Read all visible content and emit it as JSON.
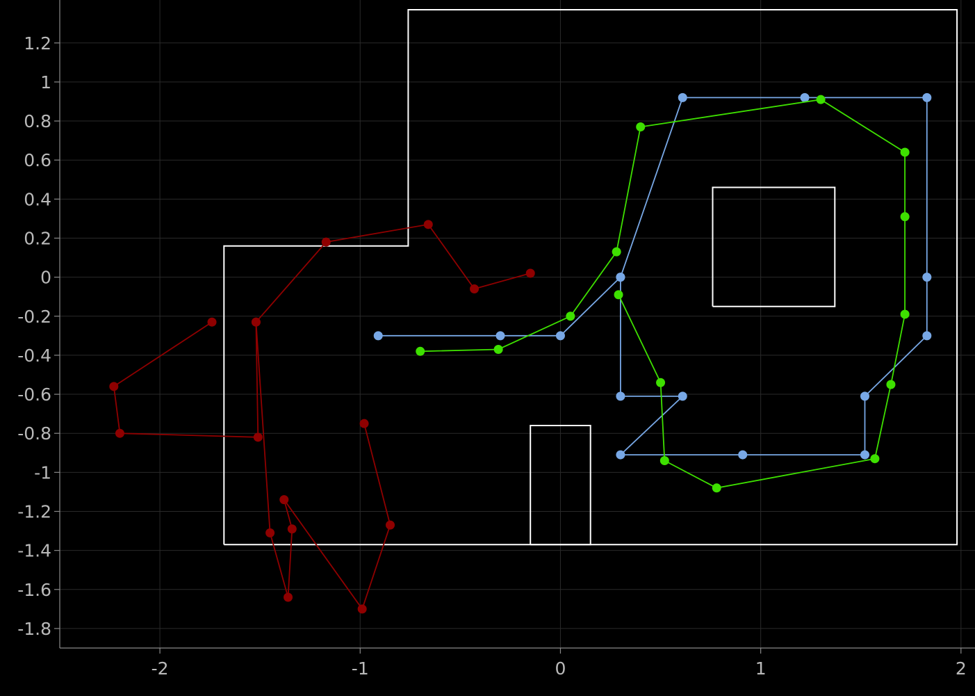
{
  "chart_data": {
    "type": "line",
    "title": "",
    "xlabel": "",
    "ylabel": "",
    "xlim": [
      -2.5,
      2.07
    ],
    "ylim": [
      -1.9,
      1.42
    ],
    "grid": true,
    "x_ticks": [
      -2,
      -1,
      0,
      1,
      2
    ],
    "x_tick_labels": [
      "-2",
      "-1",
      "0",
      "1",
      "2"
    ],
    "y_ticks": [
      1.2,
      1,
      0.8,
      0.6,
      0.4,
      0.2,
      0,
      -0.2,
      -0.4,
      -0.6,
      -0.8,
      -1,
      -1.2,
      -1.4,
      -1.6,
      -1.8
    ],
    "y_tick_labels": [
      "1.2",
      "1",
      "0.8",
      "0.6",
      "0.4",
      "0.2",
      "0",
      "-0.2",
      "-0.4",
      "-0.6",
      "-0.8",
      "-1",
      "-1.2",
      "-1.4",
      "-1.6",
      "-1.8"
    ],
    "map_outline": {
      "color": "#ffffff",
      "outer_wall": [
        [
          -1.68,
          -1.37
        ],
        [
          1.98,
          -1.37
        ],
        [
          1.98,
          1.37
        ],
        [
          -0.76,
          1.37
        ],
        [
          -0.76,
          0.16
        ],
        [
          -1.68,
          0.16
        ],
        [
          -1.68,
          -1.37
        ]
      ],
      "obstacles": [
        [
          [
            0.76,
            -0.15
          ],
          [
            1.37,
            -0.15
          ],
          [
            1.37,
            0.46
          ],
          [
            0.76,
            0.46
          ],
          [
            0.76,
            -0.15
          ]
        ],
        [
          [
            -0.15,
            -1.37
          ],
          [
            0.15,
            -1.37
          ],
          [
            0.15,
            -0.76
          ],
          [
            -0.15,
            -0.76
          ],
          [
            -0.15,
            -1.37
          ]
        ]
      ]
    },
    "series": [
      {
        "color": "#8f0000",
        "x": [
          -0.15,
          -0.43,
          -0.66,
          -1.17,
          -1.52,
          -1.51,
          -2.2,
          -2.23,
          -1.74
        ],
        "y": [
          0.02,
          -0.06,
          0.27,
          0.18,
          -0.23,
          -0.82,
          -0.8,
          -0.56,
          -0.23
        ]
      },
      {
        "color": "#8f0000",
        "x": [
          -0.98,
          -0.85,
          -0.99,
          -1.38,
          -1.34,
          -1.36,
          -1.45,
          -1.52
        ],
        "y": [
          -0.75,
          -1.27,
          -1.7,
          -1.14,
          -1.29,
          -1.64,
          -1.31,
          -0.23
        ]
      },
      {
        "color": "#78a8e6",
        "x": [
          -0.91,
          -0.3,
          0.0,
          0.3,
          0.61,
          1.22,
          1.83,
          1.83,
          1.83,
          1.52,
          1.52,
          0.91,
          0.3,
          0.61,
          0.3,
          0.3
        ],
        "y": [
          -0.3,
          -0.3,
          -0.3,
          0.0,
          0.92,
          0.92,
          0.92,
          0.0,
          -0.3,
          -0.61,
          -0.91,
          -0.91,
          -0.91,
          -0.61,
          -0.61,
          0.0
        ]
      },
      {
        "color": "#3ee000",
        "x": [
          -0.7,
          -0.31,
          0.05,
          0.28,
          0.4,
          1.3,
          1.72,
          1.72,
          1.72,
          1.65,
          1.57,
          0.78,
          0.52,
          0.5,
          0.29
        ],
        "y": [
          -0.38,
          -0.37,
          -0.2,
          0.13,
          0.77,
          0.91,
          0.64,
          0.31,
          -0.19,
          -0.55,
          -0.93,
          -1.08,
          -0.94,
          -0.54,
          -0.09
        ]
      }
    ]
  }
}
